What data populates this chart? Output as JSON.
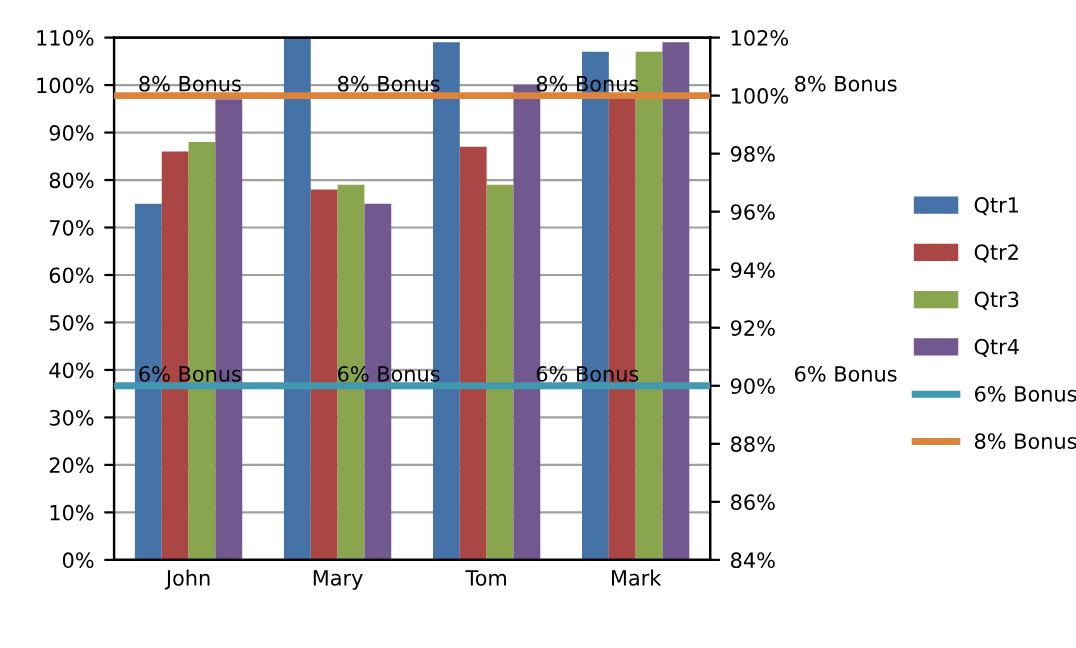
{
  "chart_data": {
    "type": "bar",
    "categories": [
      "John",
      "Mary",
      "Tom",
      "Mark"
    ],
    "series": [
      {
        "name": "Qtr1",
        "color": "#4572a7",
        "values": [
          75,
          110,
          109,
          107
        ]
      },
      {
        "name": "Qtr2",
        "color": "#aa4643",
        "values": [
          86,
          78,
          87,
          98
        ]
      },
      {
        "name": "Qtr3",
        "color": "#89a54e",
        "values": [
          88,
          79,
          79,
          107
        ]
      },
      {
        "name": "Qtr4",
        "color": "#71588f",
        "values": [
          97,
          75,
          100,
          109
        ]
      }
    ],
    "ylim": [
      0,
      110
    ],
    "yticks": [
      {
        "value": 0,
        "label": "0%"
      },
      {
        "value": 10,
        "label": "10%"
      },
      {
        "value": 20,
        "label": "20%"
      },
      {
        "value": 30,
        "label": "30%"
      },
      {
        "value": 40,
        "label": "40%"
      },
      {
        "value": 50,
        "label": "50%"
      },
      {
        "value": 60,
        "label": "60%"
      },
      {
        "value": 70,
        "label": "70%"
      },
      {
        "value": 80,
        "label": "80%"
      },
      {
        "value": 90,
        "label": "90%"
      },
      {
        "value": 100,
        "label": "100%"
      },
      {
        "value": 110,
        "label": "110%"
      }
    ],
    "y2lim": [
      84,
      102
    ],
    "y2ticks": [
      {
        "value": 84,
        "label": "84%"
      },
      {
        "value": 86,
        "label": "86%"
      },
      {
        "value": 88,
        "label": "88%"
      },
      {
        "value": 90,
        "label": "90%"
      },
      {
        "value": 92,
        "label": "92%"
      },
      {
        "value": 94,
        "label": "94%"
      },
      {
        "value": 96,
        "label": "96%"
      },
      {
        "value": 98,
        "label": "98%"
      },
      {
        "value": 100,
        "label": "100%"
      },
      {
        "value": 102,
        "label": "102%"
      }
    ],
    "ref_lines": [
      {
        "axis": "y2",
        "value": 90,
        "label": "6% Bonus",
        "color": "#4198af"
      },
      {
        "axis": "y2",
        "value": 100,
        "label": "8% Bonus",
        "color": "#db843d"
      }
    ],
    "grid": "y",
    "legend": "right"
  }
}
